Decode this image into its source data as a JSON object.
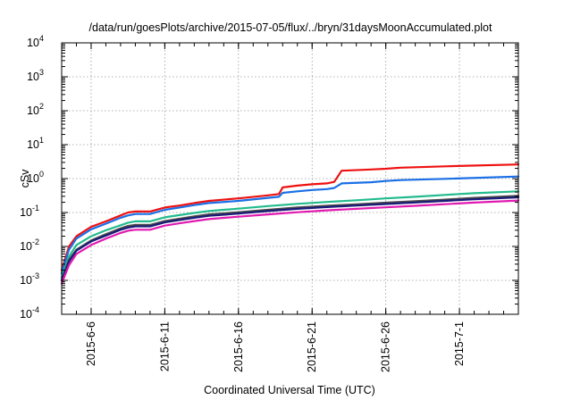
{
  "chart_data": {
    "type": "line",
    "title": "/data/run/goesPlots/archive/2015-07-05/flux/../bryn/31daysMoonAccumulated.plot",
    "xlabel": "Coordinated Universal Time (UTC)",
    "ylabel": "cSv",
    "yscale": "log",
    "ylim_exponents": [
      -4,
      4
    ],
    "y_ticks": [
      {
        "base": "10",
        "exp": "-4"
      },
      {
        "base": "10",
        "exp": "-3"
      },
      {
        "base": "10",
        "exp": "-2"
      },
      {
        "base": "10",
        "exp": "-1"
      },
      {
        "base": "10",
        "exp": "0"
      },
      {
        "base": "10",
        "exp": "1"
      },
      {
        "base": "10",
        "exp": "2"
      },
      {
        "base": "10",
        "exp": "3"
      },
      {
        "base": "10",
        "exp": "4"
      }
    ],
    "xlim": [
      "2015-06-04T00:00",
      "2015-07-05T00:00"
    ],
    "x_ticks": [
      "2015-6-6",
      "2015-6-11",
      "2015-6-16",
      "2015-6-21",
      "2015-6-26",
      "2015-7-1"
    ],
    "x_tick_dates": [
      "2015-06-06",
      "2015-06-11",
      "2015-06-16",
      "2015-06-21",
      "2015-06-26",
      "2015-07-01"
    ],
    "grid": true,
    "series": [
      {
        "color": "#ee1111",
        "points": [
          [
            "2015-06-04",
            0.002
          ],
          [
            "2015-06-04T12:00",
            0.01
          ],
          [
            "2015-06-05",
            0.02
          ],
          [
            "2015-06-06",
            0.038
          ],
          [
            "2015-06-07",
            0.055
          ],
          [
            "2015-06-08",
            0.082
          ],
          [
            "2015-06-08T12:00",
            0.1
          ],
          [
            "2015-06-09",
            0.107
          ],
          [
            "2015-06-10",
            0.107
          ],
          [
            "2015-06-11",
            0.14
          ],
          [
            "2015-06-12",
            0.16
          ],
          [
            "2015-06-13",
            0.19
          ],
          [
            "2015-06-14",
            0.22
          ],
          [
            "2015-06-16",
            0.26
          ],
          [
            "2015-06-18",
            0.32
          ],
          [
            "2015-06-18T18:00",
            0.35
          ],
          [
            "2015-06-19",
            0.55
          ],
          [
            "2015-06-20",
            0.62
          ],
          [
            "2015-06-21",
            0.68
          ],
          [
            "2015-06-22",
            0.72
          ],
          [
            "2015-06-22T12:00",
            0.8
          ],
          [
            "2015-06-23",
            1.7
          ],
          [
            "2015-06-25",
            1.85
          ],
          [
            "2015-06-26",
            1.95
          ],
          [
            "2015-06-27",
            2.1
          ],
          [
            "2015-06-30",
            2.3
          ],
          [
            "2015-07-05",
            2.6
          ]
        ]
      },
      {
        "color": "#1a6fe6",
        "points": [
          [
            "2015-06-04",
            0.0016
          ],
          [
            "2015-06-04T12:00",
            0.008
          ],
          [
            "2015-06-05",
            0.017
          ],
          [
            "2015-06-06",
            0.032
          ],
          [
            "2015-06-07",
            0.047
          ],
          [
            "2015-06-08",
            0.07
          ],
          [
            "2015-06-08T12:00",
            0.082
          ],
          [
            "2015-06-09",
            0.09
          ],
          [
            "2015-06-10",
            0.09
          ],
          [
            "2015-06-11",
            0.12
          ],
          [
            "2015-06-12",
            0.14
          ],
          [
            "2015-06-13",
            0.165
          ],
          [
            "2015-06-14",
            0.19
          ],
          [
            "2015-06-16",
            0.22
          ],
          [
            "2015-06-18",
            0.27
          ],
          [
            "2015-06-18T18:00",
            0.29
          ],
          [
            "2015-06-19",
            0.38
          ],
          [
            "2015-06-20",
            0.42
          ],
          [
            "2015-06-21",
            0.46
          ],
          [
            "2015-06-22",
            0.49
          ],
          [
            "2015-06-22T12:00",
            0.53
          ],
          [
            "2015-06-23",
            0.72
          ],
          [
            "2015-06-25",
            0.78
          ],
          [
            "2015-06-26",
            0.85
          ],
          [
            "2015-06-27",
            0.9
          ],
          [
            "2015-06-30",
            0.98
          ],
          [
            "2015-07-05",
            1.15
          ]
        ]
      },
      {
        "color": "#22bb8d",
        "points": [
          [
            "2015-06-04",
            0.0012
          ],
          [
            "2015-06-04T12:00",
            0.005
          ],
          [
            "2015-06-05",
            0.011
          ],
          [
            "2015-06-06",
            0.02
          ],
          [
            "2015-06-07",
            0.03
          ],
          [
            "2015-06-08",
            0.042
          ],
          [
            "2015-06-08T12:00",
            0.05
          ],
          [
            "2015-06-09",
            0.055
          ],
          [
            "2015-06-10",
            0.055
          ],
          [
            "2015-06-11",
            0.072
          ],
          [
            "2015-06-12",
            0.084
          ],
          [
            "2015-06-13",
            0.097
          ],
          [
            "2015-06-14",
            0.11
          ],
          [
            "2015-06-16",
            0.13
          ],
          [
            "2015-06-18",
            0.155
          ],
          [
            "2015-06-20",
            0.18
          ],
          [
            "2015-06-22",
            0.205
          ],
          [
            "2015-06-24",
            0.23
          ],
          [
            "2015-06-26",
            0.26
          ],
          [
            "2015-06-28",
            0.29
          ],
          [
            "2015-06-30",
            0.33
          ],
          [
            "2015-07-02",
            0.37
          ],
          [
            "2015-07-05",
            0.42
          ]
        ]
      },
      {
        "color": "#4a4a4a",
        "points": [
          [
            "2015-06-04",
            0.001
          ],
          [
            "2015-06-04T12:00",
            0.004
          ],
          [
            "2015-06-05",
            0.008
          ],
          [
            "2015-06-06",
            0.015
          ],
          [
            "2015-06-07",
            0.023
          ],
          [
            "2015-06-08",
            0.034
          ],
          [
            "2015-06-08T12:00",
            0.04
          ],
          [
            "2015-06-09",
            0.043
          ],
          [
            "2015-06-10",
            0.043
          ],
          [
            "2015-06-11",
            0.056
          ],
          [
            "2015-06-12",
            0.066
          ],
          [
            "2015-06-13",
            0.077
          ],
          [
            "2015-06-14",
            0.088
          ],
          [
            "2015-06-16",
            0.102
          ],
          [
            "2015-06-18",
            0.12
          ],
          [
            "2015-06-20",
            0.14
          ],
          [
            "2015-06-22",
            0.158
          ],
          [
            "2015-06-24",
            0.175
          ],
          [
            "2015-06-26",
            0.195
          ],
          [
            "2015-06-28",
            0.215
          ],
          [
            "2015-06-30",
            0.24
          ],
          [
            "2015-07-02",
            0.27
          ],
          [
            "2015-07-05",
            0.31
          ]
        ]
      },
      {
        "color": "#1a1a7a",
        "points": [
          [
            "2015-06-04",
            0.001
          ],
          [
            "2015-06-04T12:00",
            0.0036
          ],
          [
            "2015-06-05",
            0.0075
          ],
          [
            "2015-06-06",
            0.014
          ],
          [
            "2015-06-07",
            0.021
          ],
          [
            "2015-06-08",
            0.031
          ],
          [
            "2015-06-08T12:00",
            0.036
          ],
          [
            "2015-06-09",
            0.039
          ],
          [
            "2015-06-10",
            0.039
          ],
          [
            "2015-06-11",
            0.051
          ],
          [
            "2015-06-12",
            0.06
          ],
          [
            "2015-06-13",
            0.07
          ],
          [
            "2015-06-14",
            0.08
          ],
          [
            "2015-06-16",
            0.093
          ],
          [
            "2015-06-18",
            0.11
          ],
          [
            "2015-06-20",
            0.128
          ],
          [
            "2015-06-22",
            0.145
          ],
          [
            "2015-06-24",
            0.16
          ],
          [
            "2015-06-26",
            0.178
          ],
          [
            "2015-06-28",
            0.197
          ],
          [
            "2015-06-30",
            0.22
          ],
          [
            "2015-07-02",
            0.245
          ],
          [
            "2015-07-05",
            0.28
          ]
        ]
      },
      {
        "color": "#e01ab0",
        "points": [
          [
            "2015-06-04",
            0.0008
          ],
          [
            "2015-06-04T12:00",
            0.0028
          ],
          [
            "2015-06-05",
            0.006
          ],
          [
            "2015-06-06",
            0.011
          ],
          [
            "2015-06-07",
            0.017
          ],
          [
            "2015-06-08",
            0.025
          ],
          [
            "2015-06-08T12:00",
            0.029
          ],
          [
            "2015-06-09",
            0.031
          ],
          [
            "2015-06-10",
            0.031
          ],
          [
            "2015-06-11",
            0.041
          ],
          [
            "2015-06-12",
            0.048
          ],
          [
            "2015-06-13",
            0.056
          ],
          [
            "2015-06-14",
            0.064
          ],
          [
            "2015-06-16",
            0.075
          ],
          [
            "2015-06-18",
            0.088
          ],
          [
            "2015-06-20",
            0.102
          ],
          [
            "2015-06-22",
            0.116
          ],
          [
            "2015-06-24",
            0.128
          ],
          [
            "2015-06-26",
            0.142
          ],
          [
            "2015-06-28",
            0.158
          ],
          [
            "2015-06-30",
            0.176
          ],
          [
            "2015-07-02",
            0.196
          ],
          [
            "2015-07-05",
            0.225
          ]
        ]
      }
    ]
  }
}
